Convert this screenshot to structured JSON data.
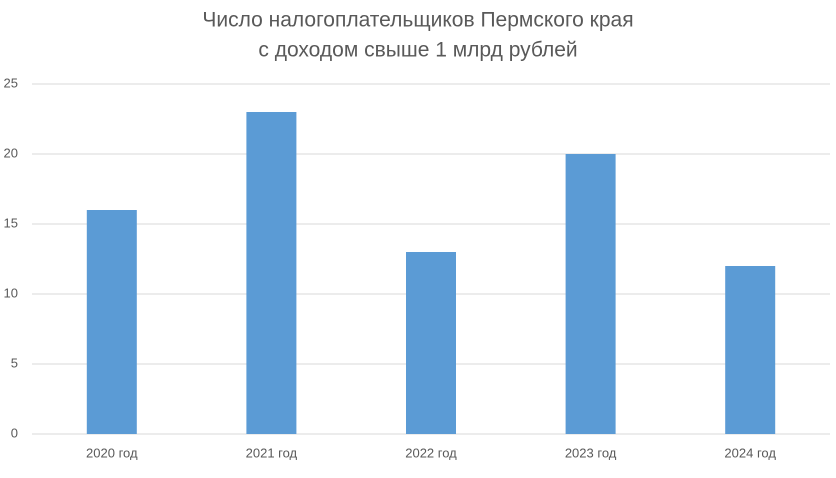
{
  "chart_data": {
    "type": "bar",
    "title": [
      "Число налогоплательщиков Пермского края",
      "с доходом свыше 1 млрд рублей"
    ],
    "categories": [
      "2020 год",
      "2021 год",
      "2022 год",
      "2023 год",
      "2024 год"
    ],
    "values": [
      16,
      23,
      13,
      20,
      12
    ],
    "color": "#5b9bd5",
    "ylim": [
      0,
      25
    ],
    "yticks": [
      0,
      5,
      10,
      15,
      20,
      25
    ],
    "grid": true
  }
}
